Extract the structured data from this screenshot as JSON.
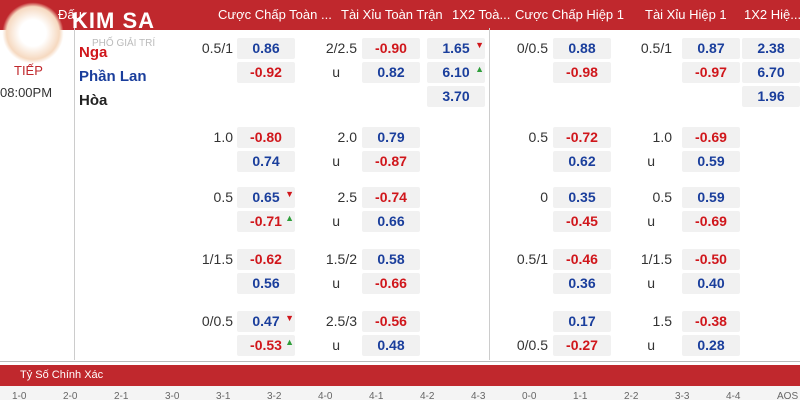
{
  "header": {
    "logo": "KIM SA",
    "logo_sub": "PHỐ GIẢI TRÍ",
    "columns": [
      "Đấu",
      "Cược Chấp Toàn ...",
      "Tài Xỉu Toàn Trận",
      "1X2 Toà...",
      "Cược Chấp Hiệp 1",
      "Tài Xỉu Hiệp 1",
      "1X2 Hiệ..."
    ]
  },
  "match": {
    "status": "TIẾP",
    "time": "08:00PM",
    "teams": [
      "Nga",
      "Phần Lan",
      "Hòa"
    ],
    "ft_1x2": [
      {
        "value": "1.65",
        "trend": "down"
      },
      {
        "value": "6.10",
        "trend": "up"
      },
      {
        "value": "3.70"
      }
    ],
    "h1_1x2": [
      {
        "value": "2.38"
      },
      {
        "value": "6.70"
      },
      {
        "value": "1.96"
      }
    ]
  },
  "groups": [
    {
      "ft_hdp": {
        "lines": [
          "0.5/1",
          null
        ],
        "odds": [
          {
            "value": "0.86"
          },
          {
            "value": "-0.92"
          }
        ]
      },
      "ft_ou": {
        "lines": [
          "2/2.5",
          "u"
        ],
        "odds": [
          {
            "value": "-0.90"
          },
          {
            "value": "0.82"
          }
        ]
      },
      "h1_hdp": {
        "lines": [
          "0/0.5",
          null
        ],
        "odds": [
          {
            "value": "0.88"
          },
          {
            "value": "-0.98"
          }
        ]
      },
      "h1_ou": {
        "lines": [
          "0.5/1",
          null
        ],
        "odds": [
          {
            "value": "0.87"
          },
          {
            "value": "-0.97"
          }
        ]
      }
    },
    {
      "ft_hdp": {
        "lines": [
          "1.0",
          null
        ],
        "odds": [
          {
            "value": "-0.80"
          },
          {
            "value": "0.74"
          }
        ]
      },
      "ft_ou": {
        "lines": [
          "2.0",
          "u"
        ],
        "odds": [
          {
            "value": "0.79"
          },
          {
            "value": "-0.87"
          }
        ]
      },
      "h1_hdp": {
        "lines": [
          "0.5",
          null
        ],
        "odds": [
          {
            "value": "-0.72"
          },
          {
            "value": "0.62"
          }
        ]
      },
      "h1_ou": {
        "lines": [
          "1.0",
          "u"
        ],
        "odds": [
          {
            "value": "-0.69"
          },
          {
            "value": "0.59"
          }
        ]
      }
    },
    {
      "ft_hdp": {
        "lines": [
          "0.5",
          null
        ],
        "odds": [
          {
            "value": "0.65",
            "trend": "down"
          },
          {
            "value": "-0.71",
            "trend": "up"
          }
        ]
      },
      "ft_ou": {
        "lines": [
          "2.5",
          "u"
        ],
        "odds": [
          {
            "value": "-0.74"
          },
          {
            "value": "0.66"
          }
        ]
      },
      "h1_hdp": {
        "lines": [
          "0",
          null
        ],
        "odds": [
          {
            "value": "0.35"
          },
          {
            "value": "-0.45"
          }
        ]
      },
      "h1_ou": {
        "lines": [
          "0.5",
          "u"
        ],
        "odds": [
          {
            "value": "0.59"
          },
          {
            "value": "-0.69"
          }
        ]
      }
    },
    {
      "ft_hdp": {
        "lines": [
          "1/1.5",
          null
        ],
        "odds": [
          {
            "value": "-0.62"
          },
          {
            "value": "0.56"
          }
        ]
      },
      "ft_ou": {
        "lines": [
          "1.5/2",
          "u"
        ],
        "odds": [
          {
            "value": "0.58"
          },
          {
            "value": "-0.66"
          }
        ]
      },
      "h1_hdp": {
        "lines": [
          "0.5/1",
          null
        ],
        "odds": [
          {
            "value": "-0.46"
          },
          {
            "value": "0.36"
          }
        ]
      },
      "h1_ou": {
        "lines": [
          "1/1.5",
          "u"
        ],
        "odds": [
          {
            "value": "-0.50"
          },
          {
            "value": "0.40"
          }
        ]
      }
    },
    {
      "ft_hdp": {
        "lines": [
          "0/0.5",
          null
        ],
        "odds": [
          {
            "value": "0.47",
            "trend": "down"
          },
          {
            "value": "-0.53",
            "trend": "up"
          }
        ]
      },
      "ft_ou": {
        "lines": [
          "2.5/3",
          "u"
        ],
        "odds": [
          {
            "value": "-0.56"
          },
          {
            "value": "0.48"
          }
        ]
      },
      "h1_hdp": {
        "lines": [
          null,
          "0/0.5"
        ],
        "odds": [
          {
            "value": "0.17"
          },
          {
            "value": "-0.27"
          }
        ]
      },
      "h1_ou": {
        "lines": [
          "1.5",
          "u"
        ],
        "odds": [
          {
            "value": "-0.38"
          },
          {
            "value": "0.28"
          }
        ]
      }
    }
  ],
  "correct_score": {
    "title": "Tỷ Số Chính Xác",
    "scores": [
      "1-0",
      "2-0",
      "2-1",
      "3-0",
      "3-1",
      "3-2",
      "4-0",
      "4-1",
      "4-2",
      "4-3",
      "0-0",
      "1-1",
      "2-2",
      "3-3",
      "4-4",
      "AOS"
    ]
  }
}
